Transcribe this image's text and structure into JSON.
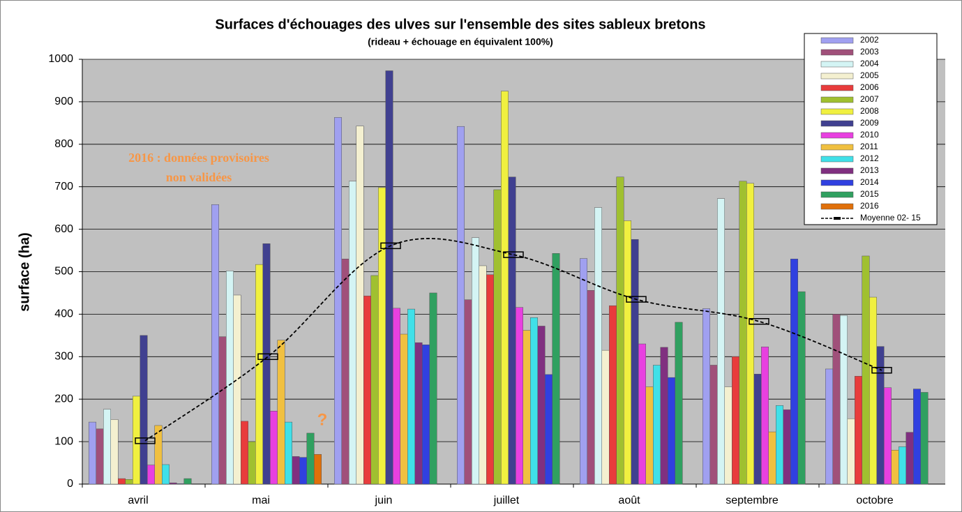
{
  "chart_data": {
    "type": "bar",
    "title": "Surfaces d'échouages des ulves sur l'ensemble des sites sableux bretons",
    "subtitle": "(rideau + échouage en équivalent 100%)",
    "y_label": "surface (ha)",
    "categories": [
      "avril",
      "mai",
      "juin",
      "juillet",
      "août",
      "septembre",
      "octobre"
    ],
    "ylim": [
      0,
      1000
    ],
    "yticks": [
      0,
      100,
      200,
      300,
      400,
      500,
      600,
      700,
      800,
      900,
      1000
    ],
    "grid": true,
    "legend": "top-right",
    "series": [
      {
        "name": "2002",
        "color": "#a0a0f0",
        "values": [
          146,
          658,
          863,
          842,
          531,
          413,
          271
        ]
      },
      {
        "name": "2003",
        "color": "#a0507a",
        "values": [
          130,
          347,
          530,
          434,
          456,
          280,
          400
        ]
      },
      {
        "name": "2004",
        "color": "#d4f4f4",
        "values": [
          176,
          502,
          713,
          580,
          651,
          672,
          397
        ]
      },
      {
        "name": "2005",
        "color": "#f4f0d0",
        "values": [
          152,
          445,
          843,
          514,
          315,
          229,
          154
        ]
      },
      {
        "name": "2006",
        "color": "#e83c3c",
        "values": [
          13,
          148,
          443,
          493,
          420,
          300,
          254
        ]
      },
      {
        "name": "2007",
        "color": "#a0c030",
        "values": [
          11,
          100,
          491,
          693,
          723,
          713,
          537
        ]
      },
      {
        "name": "2008",
        "color": "#f0f040",
        "values": [
          207,
          517,
          698,
          925,
          620,
          708,
          440
        ]
      },
      {
        "name": "2009",
        "color": "#404090",
        "values": [
          350,
          566,
          973,
          723,
          576,
          259,
          324
        ]
      },
      {
        "name": "2010",
        "color": "#e840e0",
        "values": [
          45,
          172,
          414,
          416,
          330,
          323,
          227
        ]
      },
      {
        "name": "2011",
        "color": "#f0c040",
        "values": [
          138,
          339,
          353,
          362,
          229,
          123,
          80
        ]
      },
      {
        "name": "2012",
        "color": "#40e0e8",
        "values": [
          46,
          146,
          412,
          392,
          280,
          185,
          88
        ]
      },
      {
        "name": "2013",
        "color": "#803080",
        "values": [
          3,
          65,
          333,
          372,
          322,
          175,
          122
        ]
      },
      {
        "name": "2014",
        "color": "#3040e0",
        "values": [
          1,
          63,
          328,
          258,
          251,
          530,
          224
        ]
      },
      {
        "name": "2015",
        "color": "#30a060",
        "values": [
          13,
          120,
          450,
          543,
          381,
          453,
          216
        ]
      },
      {
        "name": "2016",
        "color": "#e0700a",
        "values": [
          null,
          70,
          null,
          null,
          null,
          null,
          null
        ]
      }
    ],
    "average": {
      "name": "Moyenne 02- 15",
      "color": "#000000",
      "values": [
        102,
        300,
        561,
        540,
        435,
        383,
        268
      ]
    },
    "annotations": [
      "2016 : données provisoires",
      "non validées",
      "?"
    ]
  }
}
